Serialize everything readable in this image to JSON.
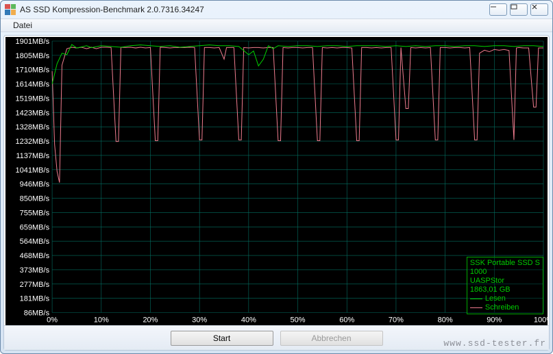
{
  "window": {
    "title": "AS SSD Kompression-Benchmark 2.0.7316.34247",
    "min_label": "—",
    "max_label": "□",
    "close_label": "✕"
  },
  "menu": {
    "file": "Datei"
  },
  "chart": {
    "type": "line",
    "background_color": "#000000",
    "grid_color": "#036f62",
    "axis_text_color": "#ffffff",
    "y_axis": {
      "min": 86,
      "max": 1901,
      "labels": [
        "1901MB/s",
        "1805MB/s",
        "1710MB/s",
        "1614MB/s",
        "1519MB/s",
        "1423MB/s",
        "1328MB/s",
        "1232MB/s",
        "1137MB/s",
        "1041MB/s",
        "946MB/s",
        "850MB/s",
        "755MB/s",
        "659MB/s",
        "564MB/s",
        "468MB/s",
        "373MB/s",
        "277MB/s",
        "181MB/s",
        "86MB/s"
      ]
    },
    "x_axis": {
      "min": 0,
      "max": 100,
      "labels": [
        "0%",
        "10%",
        "20%",
        "30%",
        "40%",
        "50%",
        "60%",
        "70%",
        "80%",
        "90%",
        "100%"
      ]
    },
    "series": {
      "lesen": {
        "color": "#00d200",
        "line_width": 1,
        "points": [
          [
            0,
            1614
          ],
          [
            1,
            1750
          ],
          [
            2,
            1820
          ],
          [
            3,
            1810
          ],
          [
            4,
            1878
          ],
          [
            5,
            1855
          ],
          [
            6,
            1862
          ],
          [
            7,
            1870
          ],
          [
            8,
            1857
          ],
          [
            10,
            1870
          ],
          [
            12,
            1865
          ],
          [
            14,
            1860
          ],
          [
            16,
            1870
          ],
          [
            18,
            1875
          ],
          [
            20,
            1870
          ],
          [
            22,
            1865
          ],
          [
            24,
            1870
          ],
          [
            26,
            1860
          ],
          [
            28,
            1865
          ],
          [
            30,
            1870
          ],
          [
            32,
            1875
          ],
          [
            34,
            1870
          ],
          [
            36,
            1870
          ],
          [
            38,
            1865
          ],
          [
            40,
            1810
          ],
          [
            41,
            1835
          ],
          [
            42,
            1735
          ],
          [
            43,
            1780
          ],
          [
            44,
            1870
          ],
          [
            45,
            1850
          ],
          [
            46,
            1870
          ],
          [
            48,
            1865
          ],
          [
            50,
            1870
          ],
          [
            52,
            1870
          ],
          [
            54,
            1865
          ],
          [
            56,
            1870
          ],
          [
            58,
            1870
          ],
          [
            60,
            1865
          ],
          [
            62,
            1870
          ],
          [
            64,
            1870
          ],
          [
            66,
            1870
          ],
          [
            68,
            1865
          ],
          [
            70,
            1870
          ],
          [
            72,
            1865
          ],
          [
            74,
            1870
          ],
          [
            76,
            1865
          ],
          [
            78,
            1870
          ],
          [
            80,
            1870
          ],
          [
            82,
            1865
          ],
          [
            84,
            1870
          ],
          [
            86,
            1870
          ],
          [
            88,
            1865
          ],
          [
            90,
            1870
          ],
          [
            92,
            1870
          ],
          [
            94,
            1865
          ],
          [
            96,
            1870
          ],
          [
            98,
            1870
          ],
          [
            100,
            1865
          ]
        ]
      },
      "schreiben": {
        "color": "#ef7c8e",
        "line_width": 1,
        "points": [
          [
            0,
            1700
          ],
          [
            0.5,
            1210
          ],
          [
            1,
            1030
          ],
          [
            1.5,
            955
          ],
          [
            2,
            1740
          ],
          [
            3,
            1850
          ],
          [
            4,
            1860
          ],
          [
            5,
            1855
          ],
          [
            6,
            1860
          ],
          [
            7,
            1850
          ],
          [
            8,
            1860
          ],
          [
            9,
            1850
          ],
          [
            10,
            1860
          ],
          [
            11,
            1860
          ],
          [
            12,
            1858
          ],
          [
            13,
            1230
          ],
          [
            13.5,
            1230
          ],
          [
            14,
            1860
          ],
          [
            15,
            1858
          ],
          [
            16,
            1860
          ],
          [
            17,
            1855
          ],
          [
            18,
            1860
          ],
          [
            19,
            1855
          ],
          [
            20,
            1858
          ],
          [
            21,
            1235
          ],
          [
            21.5,
            1235
          ],
          [
            22,
            1860
          ],
          [
            23,
            1858
          ],
          [
            24,
            1855
          ],
          [
            25,
            1858
          ],
          [
            26,
            1858
          ],
          [
            27,
            1858
          ],
          [
            28,
            1860
          ],
          [
            29,
            1858
          ],
          [
            30,
            1240
          ],
          [
            30.5,
            1240
          ],
          [
            31,
            1858
          ],
          [
            32,
            1858
          ],
          [
            33,
            1855
          ],
          [
            34,
            1858
          ],
          [
            35,
            1780
          ],
          [
            35.5,
            1858
          ],
          [
            36,
            1858
          ],
          [
            37,
            1858
          ],
          [
            38,
            1240
          ],
          [
            38.5,
            1240
          ],
          [
            39,
            1858
          ],
          [
            40,
            1855
          ],
          [
            41,
            1858
          ],
          [
            42,
            1858
          ],
          [
            43,
            1855
          ],
          [
            44,
            1858
          ],
          [
            45,
            1858
          ],
          [
            46,
            1235
          ],
          [
            46.5,
            1235
          ],
          [
            47,
            1858
          ],
          [
            48,
            1855
          ],
          [
            49,
            1858
          ],
          [
            50,
            1858
          ],
          [
            51,
            1855
          ],
          [
            52,
            1858
          ],
          [
            53,
            1858
          ],
          [
            54,
            1235
          ],
          [
            54.5,
            1235
          ],
          [
            55,
            1858
          ],
          [
            56,
            1855
          ],
          [
            57,
            1858
          ],
          [
            58,
            1855
          ],
          [
            59,
            1858
          ],
          [
            60,
            1858
          ],
          [
            61,
            1855
          ],
          [
            62,
            1235
          ],
          [
            62.5,
            1235
          ],
          [
            63,
            1858
          ],
          [
            64,
            1858
          ],
          [
            65,
            1855
          ],
          [
            66,
            1858
          ],
          [
            67,
            1855
          ],
          [
            68,
            1858
          ],
          [
            69,
            1858
          ],
          [
            70,
            1240
          ],
          [
            70.5,
            1240
          ],
          [
            71,
            1858
          ],
          [
            72,
            1450
          ],
          [
            72.5,
            1450
          ],
          [
            73,
            1858
          ],
          [
            74,
            1855
          ],
          [
            75,
            1858
          ],
          [
            76,
            1855
          ],
          [
            77,
            1858
          ],
          [
            78,
            1240
          ],
          [
            78.5,
            1240
          ],
          [
            79,
            1858
          ],
          [
            80,
            1858
          ],
          [
            81,
            1855
          ],
          [
            82,
            1858
          ],
          [
            83,
            1858
          ],
          [
            84,
            1855
          ],
          [
            85,
            1858
          ],
          [
            86,
            1240
          ],
          [
            86.5,
            1240
          ],
          [
            87,
            1820
          ],
          [
            88,
            1840
          ],
          [
            89,
            1830
          ],
          [
            90,
            1845
          ],
          [
            91,
            1840
          ],
          [
            92,
            1845
          ],
          [
            93,
            1838
          ],
          [
            94,
            1240
          ],
          [
            94.5,
            1855
          ],
          [
            95,
            1858
          ],
          [
            96,
            1855
          ],
          [
            97,
            1855
          ],
          [
            98,
            1460
          ],
          [
            98.5,
            1460
          ],
          [
            99,
            1855
          ],
          [
            100,
            1855
          ]
        ]
      }
    },
    "legend": {
      "device_line1": "SSK Portable SSD S",
      "device_line2": "1000",
      "device_line3": "UASPStor",
      "device_line4": "1863,01 GB",
      "read_label": "Lesen",
      "write_label": "Schreiben"
    }
  },
  "buttons": {
    "start": "Start",
    "cancel": "Abbrechen"
  },
  "watermark": "www.ssd-tester.fr"
}
